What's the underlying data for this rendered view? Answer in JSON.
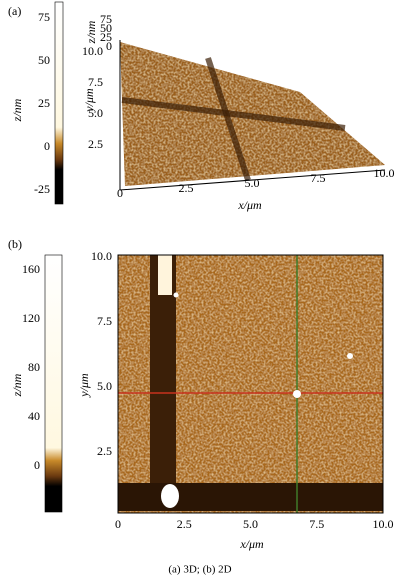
{
  "panels": [
    {
      "label": "(a)",
      "colorbar": {
        "label": "z/nm",
        "ticks": [
          "75",
          "50",
          "25",
          "0",
          "-25"
        ]
      },
      "z_axis": {
        "label": "z/nm",
        "ticks": [
          "75",
          "50",
          "25",
          "0"
        ]
      },
      "y_axis": {
        "label": "y/μm",
        "ticks": [
          "2.5",
          "5.0",
          "7.5",
          "10.0"
        ]
      },
      "x_axis": {
        "label": "x/μm",
        "ticks": [
          "0",
          "2.5",
          "5.0",
          "7.5",
          "10.0"
        ]
      }
    },
    {
      "label": "(b)",
      "colorbar": {
        "label": "z/nm",
        "ticks": [
          "160",
          "120",
          "80",
          "40",
          "0"
        ]
      },
      "y_axis": {
        "label": "y/μm",
        "ticks": [
          "10.0",
          "7.5",
          "5.0",
          "2.5"
        ]
      },
      "x_axis": {
        "label": "x/μm",
        "ticks": [
          "0",
          "2.5",
          "5.0",
          "7.5",
          "10.0"
        ]
      }
    }
  ],
  "caption": "(a) 3D;  (b) 2D"
}
